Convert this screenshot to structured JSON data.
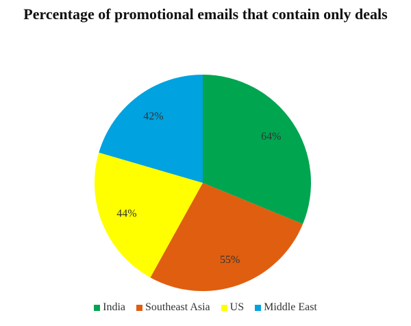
{
  "chart_data": {
    "type": "pie",
    "title": "Percentage of promotional emails that contain only deals",
    "categories": [
      "India",
      "Southeast Asia",
      "US",
      "Middle East"
    ],
    "values": [
      64,
      55,
      44,
      42
    ],
    "value_labels": [
      "64%",
      "55%",
      "44%",
      "42%"
    ],
    "colors": [
      "#00a550",
      "#e05e0f",
      "#ffff00",
      "#00a2e0"
    ],
    "legend": "bottom"
  }
}
